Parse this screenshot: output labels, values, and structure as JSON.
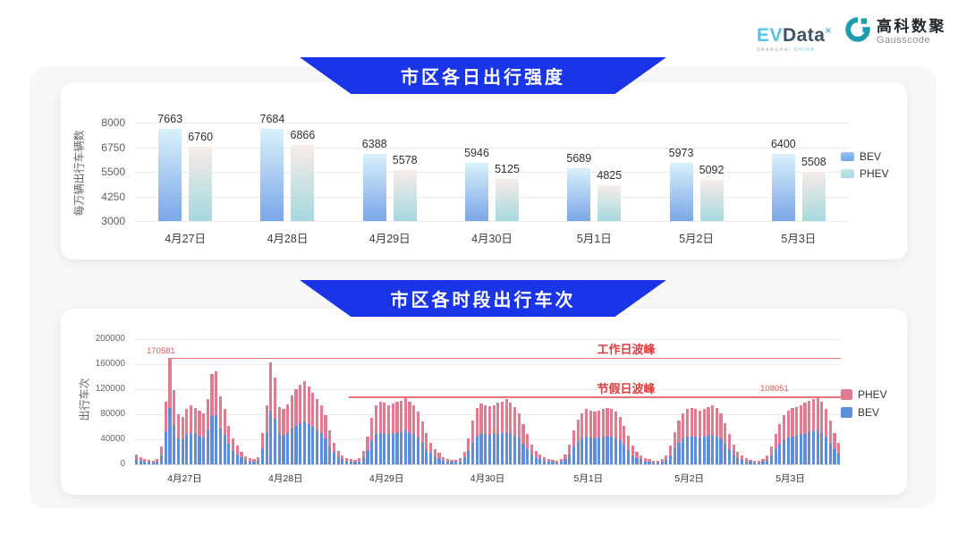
{
  "header": {
    "evdata": {
      "ev": "EV",
      "data": "Data",
      "sup": "×",
      "subtext_left": "SHANGHAI",
      "subtext_right": "CHINA"
    },
    "gausscode": {
      "cn": "高科数聚",
      "en": "Gausscode"
    }
  },
  "chart_data": [
    {
      "type": "bar",
      "title": "市区各日出行强度",
      "ylabel": "每万辆出行车辆数",
      "xlabel": "",
      "ylim": [
        3000,
        8000
      ],
      "yticks": [
        3000,
        4250,
        5500,
        6750,
        8000
      ],
      "grid": true,
      "legend_position": "right",
      "categories": [
        "4月27日",
        "4月28日",
        "4月29日",
        "4月30日",
        "5月1日",
        "5月2日",
        "5月3日"
      ],
      "series": [
        {
          "name": "BEV",
          "values": [
            7663,
            7684,
            6388,
            5946,
            5689,
            5973,
            6400
          ]
        },
        {
          "name": "PHEV",
          "values": [
            6760,
            6866,
            5578,
            5125,
            4825,
            5092,
            5508
          ]
        }
      ],
      "colors": {
        "bev_gradient": [
          "#d9f1fa",
          "#7ba6e8"
        ],
        "phev_gradient": [
          "#f8ece8",
          "#a5d8de"
        ]
      }
    },
    {
      "type": "stacked-bar",
      "title": "市区各时段出行车次",
      "ylabel": "出行车次",
      "xlabel": "",
      "ylim": [
        0,
        200000
      ],
      "yticks": [
        0,
        40000,
        80000,
        120000,
        160000,
        200000
      ],
      "grid": true,
      "legend_position": "right",
      "hours_per_day": 24,
      "categories": [
        "4月27日",
        "4月28日",
        "4月29日",
        "4月30日",
        "5月1日",
        "5月2日",
        "5月3日"
      ],
      "annotations": [
        {
          "label": "工作日波峰",
          "value": 170581
        },
        {
          "label": "节假日波峰",
          "value": 108051
        }
      ],
      "series": [
        {
          "name": "PHEV",
          "color": "#e17b92",
          "days": [
            [
              7000,
              5000,
              4000,
              3000,
              3000,
              4000,
              13000,
              47000,
              80000,
              56000,
              38000,
              36000,
              41000,
              45000,
              42000,
              40000,
              39000,
              49000,
              68000,
              70000,
              51000,
              41000,
              29000,
              20000
            ],
            [
              14000,
              9000,
              6000,
              5000,
              4000,
              6000,
              24000,
              45000,
              77000,
              66000,
              44000,
              42000,
              46000,
              53000,
              58000,
              61000,
              64000,
              60000,
              55000,
              50000,
              45000,
              37000,
              26000,
              17000
            ],
            [
              10000,
              6000,
              5000,
              4000,
              3000,
              5000,
              10000,
              22000,
              37000,
              47000,
              50000,
              49000,
              47000,
              48000,
              50000,
              51000,
              53000,
              50000,
              47000,
              42000,
              34000,
              25000,
              17000,
              12000
            ],
            [
              8000,
              6000,
              4000,
              3000,
              3000,
              5000,
              9000,
              21000,
              35000,
              45000,
              48000,
              47000,
              46000,
              47000,
              49000,
              50000,
              52000,
              49000,
              46000,
              41000,
              32000,
              24000,
              16000,
              11000
            ],
            [
              7000,
              5000,
              4000,
              3000,
              3000,
              4000,
              7000,
              16000,
              27000,
              36000,
              41000,
              44000,
              43000,
              42000,
              43000,
              44000,
              45000,
              44000,
              42000,
              38000,
              31000,
              23000,
              15000,
              10000
            ],
            [
              7000,
              5000,
              4000,
              3000,
              3000,
              4000,
              7000,
              15000,
              26000,
              35000,
              41000,
              44000,
              45000,
              44000,
              43000,
              44000,
              46000,
              47000,
              45000,
              41000,
              33000,
              24000,
              16000,
              10000
            ],
            [
              7000,
              5000,
              3000,
              3000,
              3000,
              4000,
              7000,
              14000,
              24000,
              32000,
              39000,
              43000,
              45000,
              46000,
              47000,
              49000,
              51000,
              52000,
              54000,
              50000,
              44000,
              35000,
              25000,
              17000
            ]
          ]
        },
        {
          "name": "BEV",
          "color": "#5e8ddb",
          "days": [
            [
              9000,
              6000,
              4000,
              4000,
              3000,
              5000,
              15000,
              53000,
              90581,
              63000,
              42000,
              40000,
              47000,
              50000,
              48000,
              46000,
              43000,
              55000,
              77000,
              79000,
              57000,
              47000,
              33000,
              22000
            ],
            [
              16000,
              11000,
              7000,
              5000,
              5000,
              6000,
              26000,
              50000,
              86000,
              73000,
              48000,
              46000,
              50000,
              57000,
              62000,
              66000,
              69000,
              65000,
              60000,
              55000,
              50000,
              41000,
              29000,
              18000
            ],
            [
              12000,
              8000,
              5000,
              4000,
              4000,
              5000,
              12000,
              23000,
              38000,
              48000,
              50000,
              49000,
              48000,
              49000,
              50000,
              51000,
              54000,
              50000,
              48000,
              43000,
              34000,
              25000,
              18000,
              12000
            ],
            [
              10000,
              6000,
              5000,
              4000,
              4000,
              5000,
              11000,
              21000,
              35000,
              45000,
              49000,
              48000,
              47000,
              48000,
              49000,
              50000,
              52000,
              49000,
              46000,
              41000,
              33000,
              24000,
              16000,
              11000
            ],
            [
              9000,
              6000,
              4000,
              4000,
              3000,
              5000,
              9000,
              16000,
              28000,
              36000,
              41000,
              44000,
              43000,
              42000,
              43000,
              44000,
              45000,
              44000,
              42000,
              38000,
              31000,
              23000,
              15000,
              10000
            ],
            [
              8000,
              5000,
              4000,
              3000,
              3000,
              4000,
              8000,
              15000,
              26000,
              35000,
              41000,
              44000,
              45000,
              44000,
              43000,
              44000,
              46000,
              47000,
              45000,
              41000,
              33000,
              24000,
              16000,
              10000
            ],
            [
              7000,
              5000,
              4000,
              3000,
              3000,
              4000,
              7000,
              14000,
              24000,
              33000,
              39000,
              43000,
              45000,
              46000,
              48000,
              49000,
              51000,
              53000,
              54051,
              50000,
              44000,
              35000,
              25000,
              17000
            ]
          ]
        }
      ]
    }
  ]
}
